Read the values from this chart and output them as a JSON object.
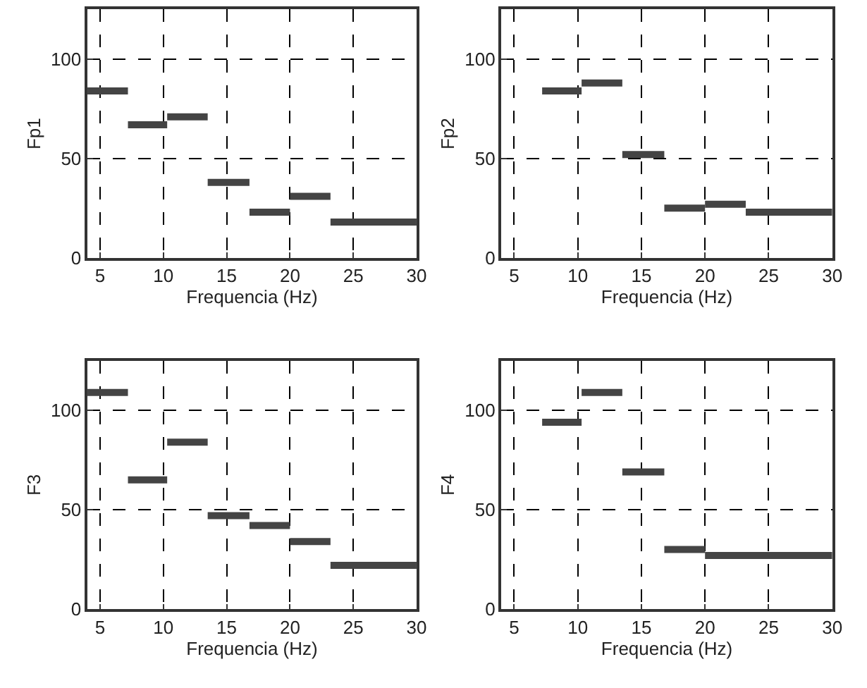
{
  "chart_data": [
    {
      "type": "line",
      "xlabel": "Frequencia (Hz)",
      "ylabel": "Fp1",
      "xlim": [
        4,
        30
      ],
      "ylim": [
        0,
        125
      ],
      "xticks": [
        5,
        10,
        15,
        20,
        25,
        30
      ],
      "yticks": [
        0,
        50,
        100
      ],
      "grid": true,
      "marker": "none",
      "series": [
        {
          "color": "#444444",
          "x": [
            4,
            7.2,
            null,
            7.2,
            10.3,
            null,
            10.3,
            13.5,
            null,
            13.5,
            16.8,
            null,
            16.8,
            20,
            null,
            20,
            23.2,
            null,
            23.2,
            30
          ],
          "values": [
            84,
            84,
            null,
            67,
            67,
            null,
            71,
            71,
            null,
            38,
            38,
            null,
            23,
            23,
            null,
            31,
            31,
            null,
            18,
            18
          ]
        }
      ]
    },
    {
      "type": "line",
      "xlabel": "Frequencia (Hz)",
      "ylabel": "Fp2",
      "xlim": [
        4,
        30
      ],
      "ylim": [
        0,
        125
      ],
      "xticks": [
        5,
        10,
        15,
        20,
        25,
        30
      ],
      "yticks": [
        0,
        50,
        100
      ],
      "grid": true,
      "marker": "none",
      "series": [
        {
          "color": "#444444",
          "x": [
            7.2,
            10.3,
            null,
            10.3,
            13.5,
            null,
            13.5,
            16.8,
            null,
            16.8,
            20,
            null,
            20,
            23.2,
            null,
            23.2,
            30
          ],
          "values": [
            84,
            84,
            null,
            88,
            88,
            null,
            52,
            52,
            null,
            25,
            25,
            null,
            27,
            27,
            null,
            23,
            23
          ]
        }
      ]
    },
    {
      "type": "line",
      "xlabel": "Frequencia (Hz)",
      "ylabel": "F3",
      "xlim": [
        4,
        30
      ],
      "ylim": [
        0,
        125
      ],
      "xticks": [
        5,
        10,
        15,
        20,
        25,
        30
      ],
      "yticks": [
        0,
        50,
        100
      ],
      "grid": true,
      "marker": "none",
      "series": [
        {
          "color": "#444444",
          "x": [
            4,
            7.2,
            null,
            7.2,
            10.3,
            null,
            10.3,
            13.5,
            null,
            13.5,
            16.8,
            null,
            16.8,
            20,
            null,
            20,
            23.2,
            null,
            23.2,
            30
          ],
          "values": [
            109,
            109,
            null,
            65,
            65,
            null,
            84,
            84,
            null,
            47,
            47,
            null,
            42,
            42,
            null,
            34,
            34,
            null,
            22,
            22
          ]
        }
      ]
    },
    {
      "type": "line",
      "xlabel": "Frequencia (Hz)",
      "ylabel": "F4",
      "xlim": [
        4,
        30
      ],
      "ylim": [
        0,
        125
      ],
      "xticks": [
        5,
        10,
        15,
        20,
        25,
        30
      ],
      "yticks": [
        0,
        50,
        100
      ],
      "grid": true,
      "marker": "none",
      "series": [
        {
          "color": "#444444",
          "x": [
            7.2,
            10.3,
            null,
            10.3,
            13.5,
            null,
            13.5,
            16.8,
            null,
            16.8,
            20,
            null,
            20,
            30
          ],
          "values": [
            94,
            94,
            null,
            109,
            109,
            null,
            69,
            69,
            null,
            30,
            30,
            null,
            27,
            27
          ]
        }
      ]
    }
  ]
}
